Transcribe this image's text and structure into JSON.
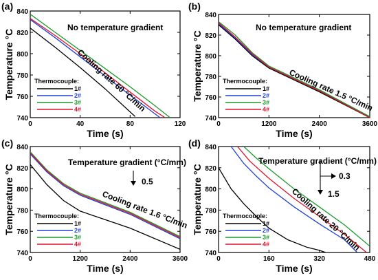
{
  "colors": {
    "1#": "#000000",
    "2#": "#1f3fd6",
    "3#": "#1a9a2a",
    "4#": "#e0102a"
  },
  "chart_data": [
    {
      "panel": "(a)",
      "type": "line",
      "xlabel": "Time (s)",
      "ylabel": "Temperature °C",
      "xlim": [
        0,
        120
      ],
      "ylim": [
        740,
        840
      ],
      "xticks": [
        0,
        40,
        80,
        120
      ],
      "yticks": [
        740,
        760,
        780,
        800,
        820,
        840
      ],
      "annotations": [
        "No temperature gradient",
        "Cooling rate 60 °C/min"
      ],
      "legend_title": "Thermocouple:",
      "legend_position": "bottom-left",
      "series": [
        {
          "name": "1#",
          "x": [
            0,
            20,
            40,
            60,
            84
          ],
          "y": [
            824,
            806,
            787,
            767,
            741
          ]
        },
        {
          "name": "2#",
          "x": [
            0,
            20,
            40,
            60,
            80,
            104
          ],
          "y": [
            832,
            815,
            797,
            779,
            761,
            740
          ]
        },
        {
          "name": "3#",
          "x": [
            0,
            20,
            40,
            60,
            80,
            100,
            112
          ],
          "y": [
            837,
            820,
            803,
            786,
            769,
            751,
            740
          ]
        },
        {
          "name": "4#",
          "x": [
            0,
            20,
            40,
            60,
            80,
            100,
            108
          ],
          "y": [
            833,
            817,
            800,
            782,
            764,
            746,
            740
          ]
        }
      ]
    },
    {
      "panel": "(b)",
      "type": "line",
      "xlabel": "Time (s)",
      "ylabel": "Temperature °C",
      "xlim": [
        0,
        3600
      ],
      "ylim": [
        740,
        840
      ],
      "xticks": [
        0,
        1200,
        2400,
        3600
      ],
      "yticks": [
        740,
        760,
        780,
        800,
        820,
        840
      ],
      "annotations": [
        "No temperature gradient",
        "Cooling rate 1.5 °C/min"
      ],
      "legend_title": "Thermocouple:",
      "legend_position": "bottom-left",
      "series": [
        {
          "name": "1#",
          "x": [
            0,
            400,
            800,
            1200,
            2400,
            3600
          ],
          "y": [
            830,
            816,
            800,
            788,
            765,
            740
          ]
        },
        {
          "name": "2#",
          "x": [
            0,
            400,
            800,
            1200,
            2400,
            3600
          ],
          "y": [
            831,
            817,
            801,
            789,
            766,
            741
          ]
        },
        {
          "name": "3#",
          "x": [
            0,
            400,
            800,
            1200,
            2400,
            3600
          ],
          "y": [
            833,
            820,
            803,
            790,
            767,
            741
          ]
        },
        {
          "name": "4#",
          "x": [
            0,
            400,
            800,
            1200,
            2400,
            3600
          ],
          "y": [
            832,
            818,
            802,
            789,
            766,
            740
          ]
        }
      ]
    },
    {
      "panel": "(c)",
      "type": "line",
      "xlabel": "Time (s)",
      "ylabel": "Temperature °C",
      "xlim": [
        0,
        3600
      ],
      "ylim": [
        740,
        840
      ],
      "xticks": [
        0,
        1200,
        2400,
        3600
      ],
      "yticks": [
        740,
        760,
        780,
        800,
        820,
        840
      ],
      "annotations": [
        "Temperature gradient (°C/mm)",
        "0.5",
        "Cooling rate 1.6 °C/min"
      ],
      "legend_title": "Thermocouple:",
      "legend_position": "bottom-left",
      "series": [
        {
          "name": "1#",
          "x": [
            0,
            400,
            800,
            1200,
            2400,
            3600
          ],
          "y": [
            823,
            804,
            789,
            779,
            763,
            743
          ]
        },
        {
          "name": "2#",
          "x": [
            0,
            400,
            800,
            1200,
            2400,
            3600
          ],
          "y": [
            833,
            816,
            803,
            794,
            776,
            753
          ]
        },
        {
          "name": "3#",
          "x": [
            0,
            400,
            800,
            1200,
            2400,
            3600
          ],
          "y": [
            835,
            818,
            805,
            796,
            778,
            755
          ]
        },
        {
          "name": "4#",
          "x": [
            0,
            400,
            800,
            1200,
            2400,
            3600
          ],
          "y": [
            834,
            817,
            804,
            795,
            777,
            754
          ]
        }
      ]
    },
    {
      "panel": "(d)",
      "type": "line",
      "xlabel": "Time (s)",
      "ylabel": "Temperature °C",
      "xlim": [
        0,
        480
      ],
      "ylim": [
        740,
        840
      ],
      "xticks": [
        0,
        160,
        320,
        480
      ],
      "yticks": [
        740,
        760,
        780,
        800,
        820,
        840
      ],
      "annotations": [
        "Temperature gradient (°C/mm)",
        "0.3",
        "1.5",
        "Cooling rate 20 °C/min"
      ],
      "legend_title": "Thermocouple:",
      "legend_position": "bottom-left",
      "series": [
        {
          "name": "1#",
          "x": [
            0,
            40,
            80,
            120,
            160,
            220,
            280,
            320,
            340
          ],
          "y": [
            820,
            800,
            786,
            774,
            763,
            752,
            745,
            742,
            740
          ]
        },
        {
          "name": "2#",
          "x": [
            40,
            80,
            120,
            160,
            240,
            320,
            400,
            440
          ],
          "y": [
            840,
            824,
            812,
            801,
            783,
            767,
            752,
            740
          ]
        },
        {
          "name": "3#",
          "x": [
            80,
            120,
            160,
            240,
            320,
            400,
            480
          ],
          "y": [
            840,
            829,
            819,
            800,
            783,
            766,
            746
          ]
        },
        {
          "name": "4#",
          "x": [
            60,
            100,
            160,
            240,
            320,
            400,
            470
          ],
          "y": [
            840,
            826,
            810,
            791,
            774,
            757,
            740
          ]
        }
      ]
    }
  ]
}
